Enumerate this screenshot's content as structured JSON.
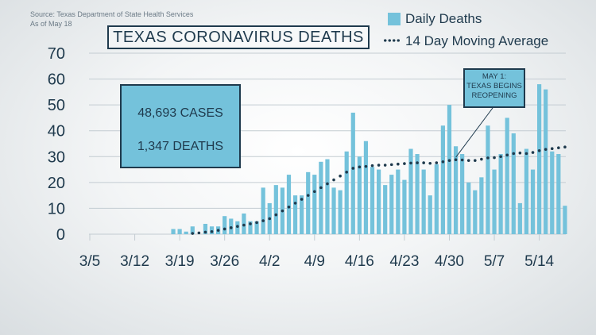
{
  "source": "Source: Texas Department of State Health Services",
  "as_of": "As of May 18",
  "colors": {
    "bar": "#74c2db",
    "line": "#1f3a4d",
    "grid": "#c3ccd2",
    "text": "#1f3a4d"
  },
  "stats": {
    "cases": "48,693 CASES",
    "deaths": "1,347 DEATHS"
  },
  "annotation": {
    "line1": "MAY 1:",
    "line2": "TEXAS BEGINS",
    "line3": "REOPENING"
  },
  "chart_data": {
    "type": "bar",
    "title": "TEXAS CORONAVIRUS DEATHS",
    "xlabel": "",
    "ylabel": "",
    "ylim": [
      0,
      70
    ],
    "yticks": [
      "0",
      "10",
      "20",
      "30",
      "40",
      "50",
      "60",
      "70"
    ],
    "xticks": [
      "3/5",
      "3/12",
      "3/19",
      "3/26",
      "4/2",
      "4/9",
      "4/16",
      "4/23",
      "4/30",
      "5/7",
      "5/14"
    ],
    "grid": true,
    "legend_position": "top-right",
    "dates": [
      "3/5",
      "3/6",
      "3/7",
      "3/8",
      "3/9",
      "3/10",
      "3/11",
      "3/12",
      "3/13",
      "3/14",
      "3/15",
      "3/16",
      "3/17",
      "3/18",
      "3/19",
      "3/20",
      "3/21",
      "3/22",
      "3/23",
      "3/24",
      "3/25",
      "3/26",
      "3/27",
      "3/28",
      "3/29",
      "3/30",
      "3/31",
      "4/1",
      "4/2",
      "4/3",
      "4/4",
      "4/5",
      "4/6",
      "4/7",
      "4/8",
      "4/9",
      "4/10",
      "4/11",
      "4/12",
      "4/13",
      "4/14",
      "4/15",
      "4/16",
      "4/17",
      "4/18",
      "4/19",
      "4/20",
      "4/21",
      "4/22",
      "4/23",
      "4/24",
      "4/25",
      "4/26",
      "4/27",
      "4/28",
      "4/29",
      "4/30",
      "5/1",
      "5/2",
      "5/3",
      "5/4",
      "5/5",
      "5/6",
      "5/7",
      "5/8",
      "5/9",
      "5/10",
      "5/11",
      "5/12",
      "5/13",
      "5/14",
      "5/15",
      "5/16",
      "5/17",
      "5/18"
    ],
    "series": [
      {
        "name": "Daily Deaths",
        "type": "bar",
        "values": [
          0,
          0,
          0,
          0,
          0,
          0,
          0,
          0,
          0,
          0,
          0,
          0,
          0,
          2,
          2,
          1,
          3,
          0,
          4,
          3,
          3,
          7,
          6,
          5,
          8,
          5,
          5,
          18,
          12,
          19,
          18,
          23,
          15,
          15,
          24,
          23,
          28,
          29,
          18,
          17,
          32,
          47,
          30,
          36,
          26,
          25,
          19,
          23,
          25,
          21,
          33,
          31,
          25,
          15,
          27,
          42,
          50,
          34,
          31,
          20,
          17,
          22,
          42,
          25,
          31,
          45,
          39,
          12,
          33,
          25,
          58,
          56,
          32,
          31,
          11
        ]
      },
      {
        "name": "14 Day Moving Average",
        "type": "line",
        "values": [
          null,
          null,
          null,
          null,
          null,
          null,
          null,
          null,
          null,
          null,
          null,
          null,
          null,
          null,
          null,
          null,
          0.3,
          0.5,
          0.8,
          1.0,
          1.5,
          2.0,
          2.5,
          3.0,
          3.5,
          4.0,
          4.5,
          5.2,
          6.0,
          7.5,
          9.0,
          10.5,
          12.0,
          13.5,
          15.0,
          16.5,
          18.0,
          19.5,
          21.0,
          22.5,
          24.0,
          25.5,
          26.0,
          26.2,
          26.5,
          26.7,
          26.7,
          26.9,
          27.1,
          27.3,
          27.5,
          27.6,
          27.6,
          27.4,
          27.6,
          28.0,
          28.5,
          28.8,
          28.7,
          28.5,
          28.5,
          29.0,
          29.5,
          29.6,
          30.0,
          30.6,
          31.2,
          31.4,
          31.2,
          31.6,
          32.3,
          32.8,
          33.1,
          33.4,
          33.7
        ]
      }
    ]
  }
}
